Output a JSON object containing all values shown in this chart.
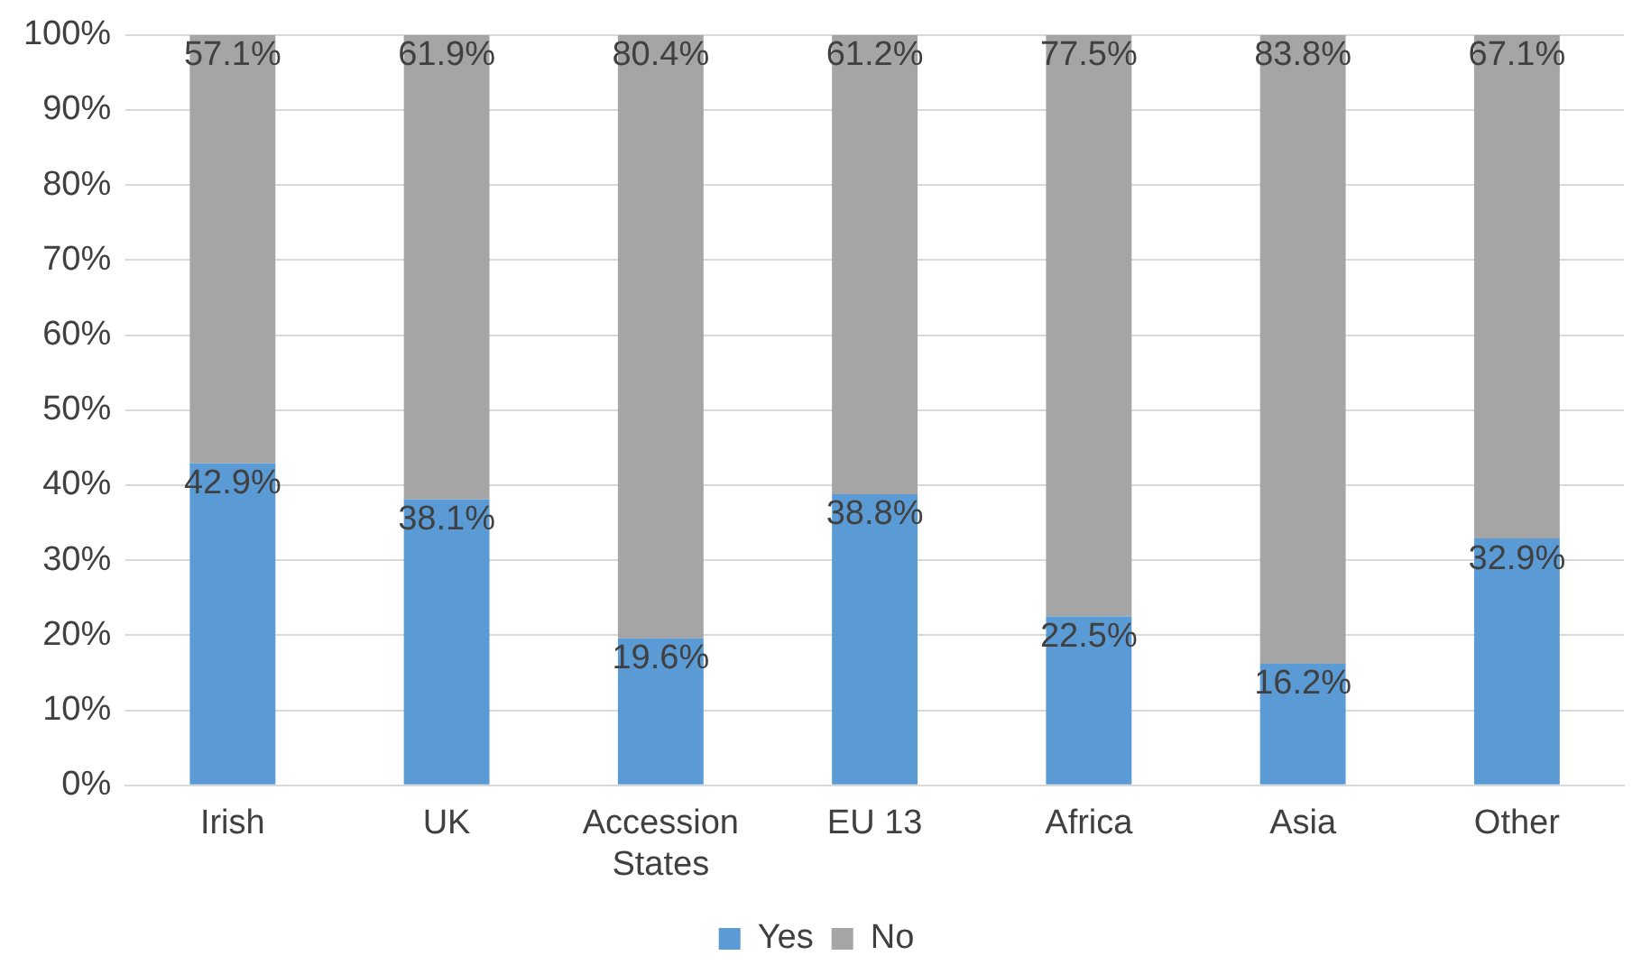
{
  "chart_data": {
    "type": "bar",
    "stacked": true,
    "categories": [
      "Irish",
      "UK",
      "Accession States",
      "EU 13",
      "Africa",
      "Asia",
      "Other"
    ],
    "series": [
      {
        "name": "Yes",
        "color": "#5b9bd5",
        "values": [
          42.9,
          38.1,
          19.6,
          38.8,
          22.5,
          16.2,
          32.9
        ],
        "value_labels": [
          "42.9%",
          "38.1%",
          "19.6%",
          "38.8%",
          "22.5%",
          "16.2%",
          "32.9%"
        ]
      },
      {
        "name": "No",
        "color": "#a5a5a5",
        "values": [
          57.1,
          61.9,
          80.4,
          61.2,
          77.5,
          83.8,
          67.1
        ],
        "value_labels": [
          "57.1%",
          "61.9%",
          "80.4%",
          "61.2%",
          "77.5%",
          "83.8%",
          "67.1%"
        ]
      }
    ],
    "ylim": [
      0,
      100
    ],
    "yticks": [
      {
        "value": 0,
        "label": "0%"
      },
      {
        "value": 10,
        "label": "10%"
      },
      {
        "value": 20,
        "label": "20%"
      },
      {
        "value": 30,
        "label": "30%"
      },
      {
        "value": 40,
        "label": "40%"
      },
      {
        "value": 50,
        "label": "50%"
      },
      {
        "value": 60,
        "label": "60%"
      },
      {
        "value": 70,
        "label": "70%"
      },
      {
        "value": 80,
        "label": "80%"
      },
      {
        "value": 90,
        "label": "90%"
      },
      {
        "value": 100,
        "label": "100%"
      }
    ],
    "grid": "y",
    "legend": "bottom"
  }
}
